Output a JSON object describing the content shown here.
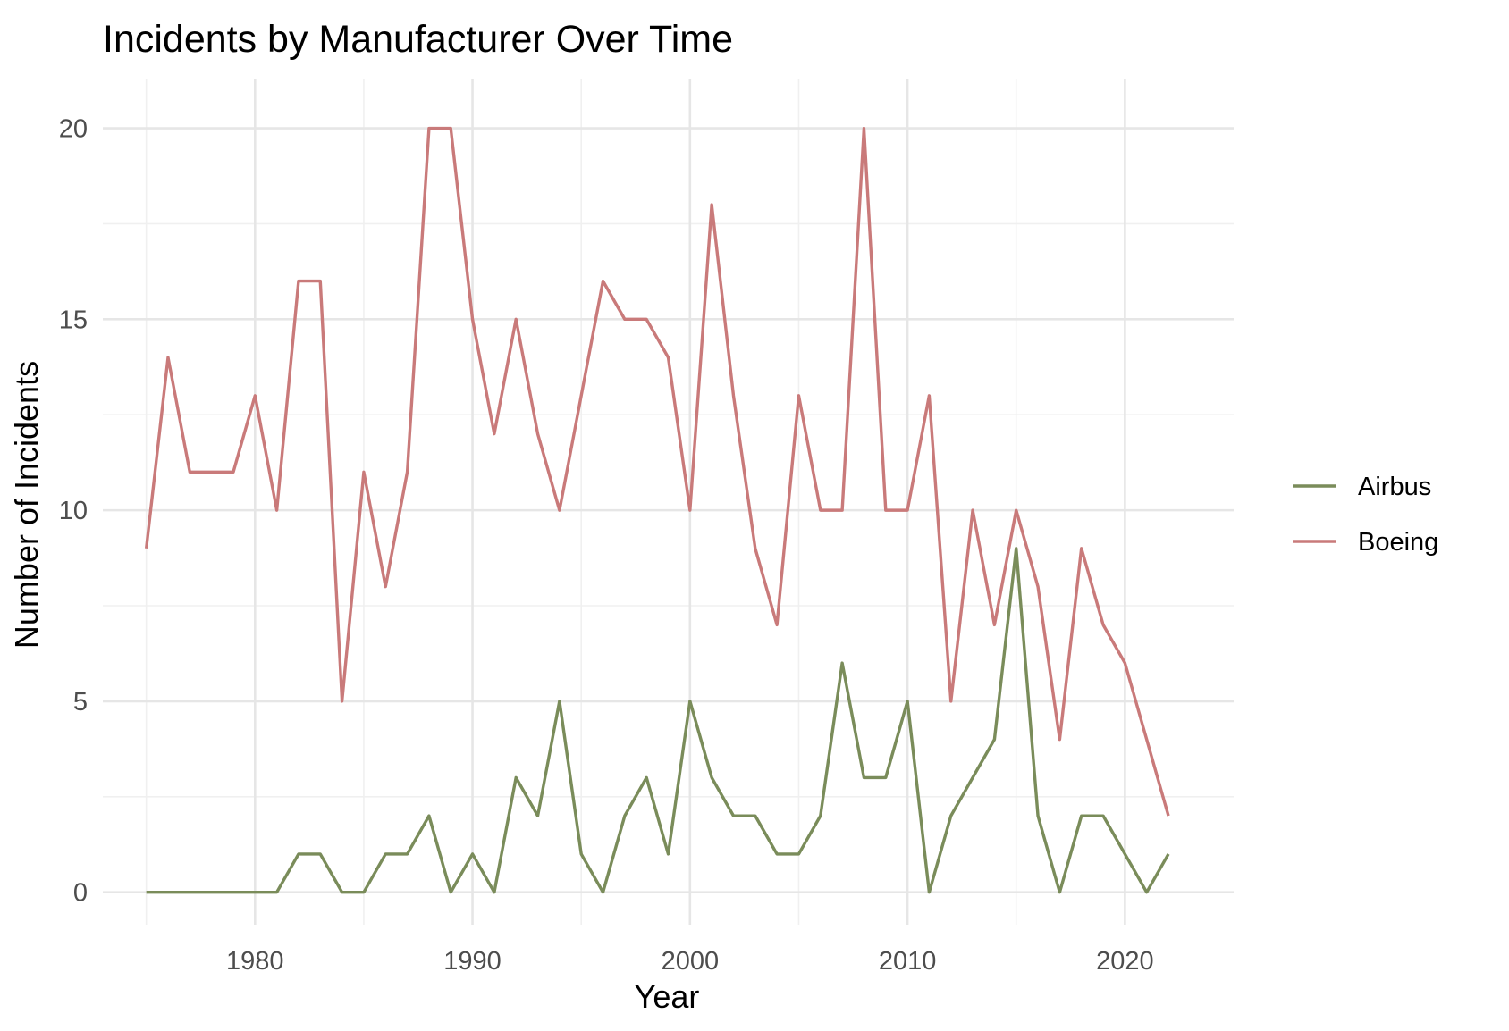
{
  "chart_data": {
    "type": "line",
    "title": "Incidents by Manufacturer Over Time",
    "xlabel": "Year",
    "ylabel": "Number of Incidents",
    "x": [
      1975,
      1976,
      1977,
      1978,
      1979,
      1980,
      1981,
      1982,
      1983,
      1984,
      1985,
      1986,
      1987,
      1988,
      1989,
      1990,
      1991,
      1992,
      1993,
      1994,
      1995,
      1996,
      1997,
      1998,
      1999,
      2000,
      2001,
      2002,
      2003,
      2004,
      2005,
      2006,
      2007,
      2008,
      2009,
      2010,
      2011,
      2012,
      2013,
      2014,
      2015,
      2016,
      2017,
      2018,
      2019,
      2020,
      2021,
      2022
    ],
    "series": [
      {
        "name": "Airbus",
        "color": "#7a8c5a",
        "values": [
          0,
          0,
          0,
          0,
          0,
          0,
          0,
          1,
          1,
          0,
          0,
          1,
          1,
          2,
          0,
          1,
          0,
          3,
          2,
          5,
          1,
          0,
          2,
          3,
          1,
          5,
          3,
          2,
          2,
          1,
          1,
          2,
          6,
          3,
          3,
          5,
          0,
          2,
          3,
          4,
          9,
          2,
          0,
          2,
          2,
          1,
          0,
          1
        ]
      },
      {
        "name": "Boeing",
        "color": "#c97a7a",
        "values": [
          9,
          14,
          11,
          11,
          11,
          13,
          10,
          16,
          16,
          5,
          11,
          8,
          11,
          20,
          20,
          15,
          12,
          15,
          12,
          10,
          13,
          16,
          15,
          15,
          14,
          10,
          18,
          13,
          9,
          7,
          13,
          10,
          10,
          20,
          10,
          10,
          13,
          5,
          10,
          7,
          10,
          8,
          4,
          9,
          7,
          6,
          4,
          2
        ]
      }
    ],
    "xlim": [
      1973,
      2025
    ],
    "ylim": [
      -0.85,
      21.3
    ],
    "xticks": [
      1980,
      1990,
      2000,
      2010,
      2020
    ],
    "xtick_labels": [
      "1980",
      "1990",
      "2000",
      "2010",
      "2020"
    ],
    "yticks": [
      0,
      5,
      10,
      15,
      20
    ],
    "ytick_labels": [
      "0",
      "5",
      "10",
      "15",
      "20"
    ],
    "grid": true,
    "legend_position": "right"
  }
}
